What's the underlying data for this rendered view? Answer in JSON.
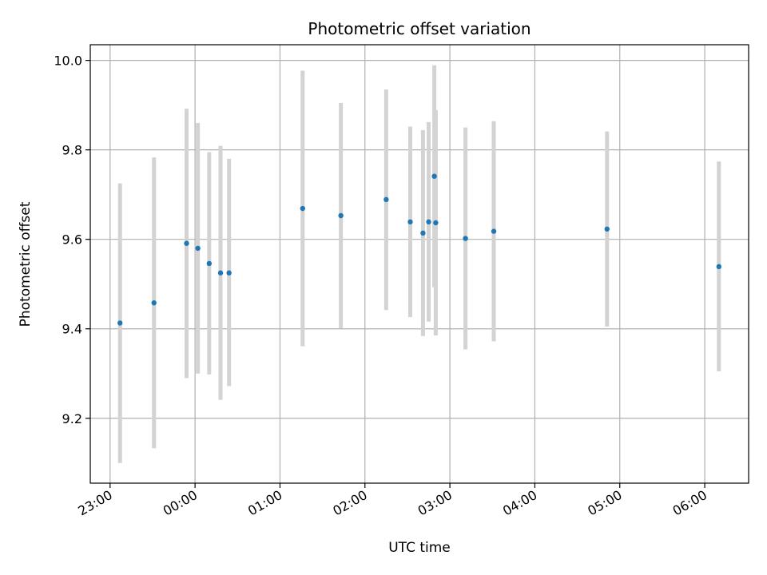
{
  "chart_data": {
    "type": "scatter",
    "title": "Photometric offset variation",
    "xlabel": "UTC time",
    "ylabel": "Photometric offset",
    "x_is_time": true,
    "x_tick_labels": [
      "23:00",
      "00:00",
      "01:00",
      "02:00",
      "03:00",
      "04:00",
      "05:00",
      "06:00"
    ],
    "y_ticks": [
      9.2,
      9.4,
      9.6,
      9.8,
      10.0
    ],
    "y_tick_labels": [
      "9.2",
      "9.4",
      "9.6",
      "9.8",
      "10.0"
    ],
    "xlim": [
      "22:46",
      "06:31"
    ],
    "ylim": [
      9.055,
      10.035
    ],
    "grid": true,
    "marker_color": "#1f77b4",
    "errorbar_color": "#d3d3d3",
    "points": [
      {
        "x": "23:07",
        "y": 9.413,
        "ylow": 9.1,
        "yhigh": 9.725
      },
      {
        "x": "23:31",
        "y": 9.458,
        "ylow": 9.133,
        "yhigh": 9.783
      },
      {
        "x": "23:54",
        "y": 9.591,
        "ylow": 9.29,
        "yhigh": 9.892
      },
      {
        "x": "00:02",
        "y": 9.58,
        "ylow": 9.3,
        "yhigh": 9.86
      },
      {
        "x": "00:10",
        "y": 9.546,
        "ylow": 9.298,
        "yhigh": 9.795
      },
      {
        "x": "00:18",
        "y": 9.525,
        "ylow": 9.241,
        "yhigh": 9.809
      },
      {
        "x": "00:24",
        "y": 9.525,
        "ylow": 9.272,
        "yhigh": 9.78
      },
      {
        "x": "01:16",
        "y": 9.669,
        "ylow": 9.361,
        "yhigh": 9.977
      },
      {
        "x": "01:43",
        "y": 9.653,
        "ylow": 9.401,
        "yhigh": 9.905
      },
      {
        "x": "02:15",
        "y": 9.689,
        "ylow": 9.442,
        "yhigh": 9.935
      },
      {
        "x": "02:32",
        "y": 9.639,
        "ylow": 9.426,
        "yhigh": 9.852
      },
      {
        "x": "02:41",
        "y": 9.614,
        "ylow": 9.384,
        "yhigh": 9.844
      },
      {
        "x": "02:45",
        "y": 9.639,
        "ylow": 9.416,
        "yhigh": 9.862
      },
      {
        "x": "02:49",
        "y": 9.741,
        "ylow": 9.493,
        "yhigh": 9.989
      },
      {
        "x": "02:50",
        "y": 9.637,
        "ylow": 9.385,
        "yhigh": 9.889
      },
      {
        "x": "03:11",
        "y": 9.602,
        "ylow": 9.354,
        "yhigh": 9.85
      },
      {
        "x": "03:31",
        "y": 9.618,
        "ylow": 9.372,
        "yhigh": 9.864
      },
      {
        "x": "04:51",
        "y": 9.623,
        "ylow": 9.405,
        "yhigh": 9.841
      },
      {
        "x": "06:10",
        "y": 9.539,
        "ylow": 9.305,
        "yhigh": 9.774
      }
    ]
  }
}
